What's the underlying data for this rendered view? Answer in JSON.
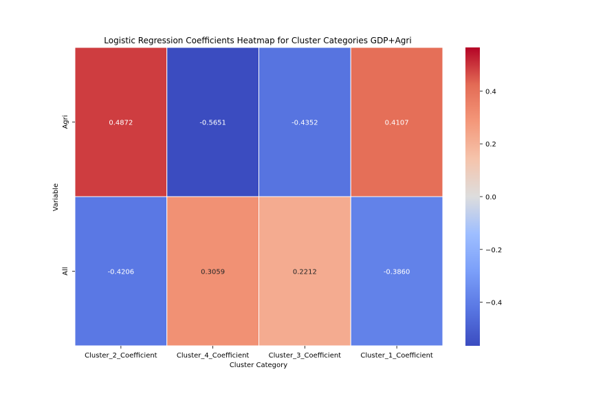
{
  "chart_data": {
    "type": "heatmap",
    "title": "Logistic Regression Coefficients Heatmap for Cluster Categories GDP+Agri",
    "xlabel": "Cluster Category",
    "ylabel": "Variable",
    "x": [
      "Cluster_2_Coefficient",
      "Cluster_4_Coefficient",
      "Cluster_3_Coefficient",
      "Cluster_1_Coefficient"
    ],
    "y": [
      "Agri",
      "All"
    ],
    "values": [
      [
        0.4872,
        -0.5651,
        -0.4352,
        0.4107
      ],
      [
        -0.4206,
        0.3059,
        0.2212,
        -0.386
      ]
    ],
    "annotations": [
      [
        "0.4872",
        "-0.5651",
        "-0.4352",
        "0.4107"
      ],
      [
        "-0.4206",
        "0.3059",
        "0.2212",
        "-0.3860"
      ]
    ],
    "colormap": "coolwarm",
    "vmin": -0.5651,
    "vmax": 0.5651,
    "colorbar_ticks": [
      {
        "value": 0.4,
        "label": "0.4"
      },
      {
        "value": 0.2,
        "label": "0.2"
      },
      {
        "value": 0.0,
        "label": "0.0"
      },
      {
        "value": -0.2,
        "label": "−0.2"
      },
      {
        "value": -0.4,
        "label": "−0.4"
      }
    ]
  }
}
